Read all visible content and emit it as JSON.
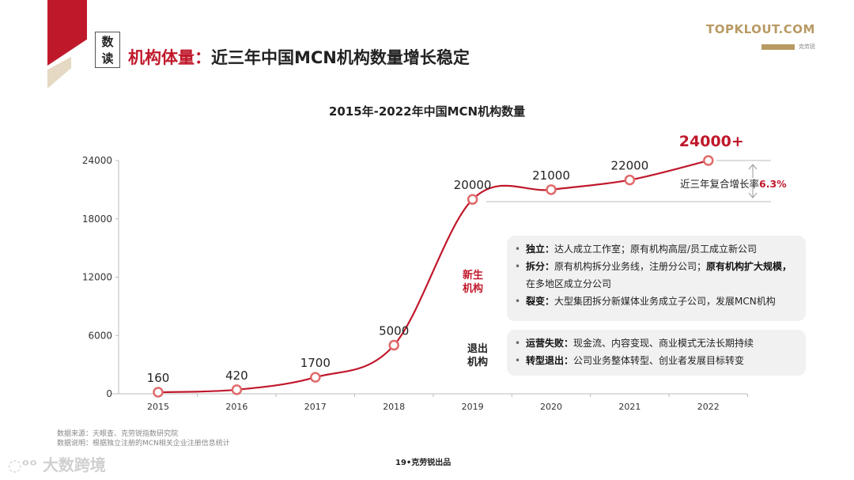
{
  "header": {
    "badge": [
      "数",
      "读"
    ],
    "title_red": "机构体量：",
    "title_black": "近三年中国MCN机构数量增长稳定"
  },
  "logo": {
    "text": "TOPKLOUT.COM",
    "tagline": "克劳锐"
  },
  "chart_data": {
    "type": "line",
    "title": "2015年-2022年中国MCN机构数量",
    "categories": [
      "2015",
      "2016",
      "2017",
      "2018",
      "2019",
      "2020",
      "2021",
      "2022"
    ],
    "values": [
      160,
      420,
      1700,
      5000,
      20000,
      21000,
      22000,
      24000
    ],
    "data_labels": [
      "160",
      "420",
      "1700",
      "5000",
      "20000",
      "21000",
      "22000",
      "24000+"
    ],
    "yticks": [
      0,
      6000,
      12000,
      18000,
      24000
    ],
    "ylim": [
      0,
      24000
    ],
    "grid": false,
    "colors": {
      "line": "#c0182b",
      "highlight": "#c0182b"
    }
  },
  "growth_note": {
    "text": "近三年复合增长率",
    "value": "6.3%"
  },
  "new_orgs": {
    "label": [
      "新生",
      "机构"
    ],
    "items": [
      {
        "key": "独立：",
        "text": "达人成立工作室；原有机构高层/员工成立新公司"
      },
      {
        "key": "拆分：",
        "text": "原有机构拆分业务线，注册分公司；",
        "bold_extra": "原有机构扩大规模，",
        "text2": "在多地区成立分公司"
      },
      {
        "key": "裂变：",
        "text": "大型集团拆分新媒体业务成立子公司，发展MCN机构"
      }
    ]
  },
  "exit_orgs": {
    "label": [
      "退出",
      "机构"
    ],
    "items": [
      {
        "key": "运营失败：",
        "text": "现金流、内容变现、商业模式无法长期持续"
      },
      {
        "key": "转型退出：",
        "text": "公司业务整体转型、创业者发展目标转变"
      }
    ]
  },
  "footer": {
    "source": "数据来源：天眼查、克劳锐指数研究院",
    "note": "数据说明：根据独立注册的MCN相关企业注册信息统计",
    "page": "19•克劳锐出品",
    "watermark": "大数跨境"
  }
}
